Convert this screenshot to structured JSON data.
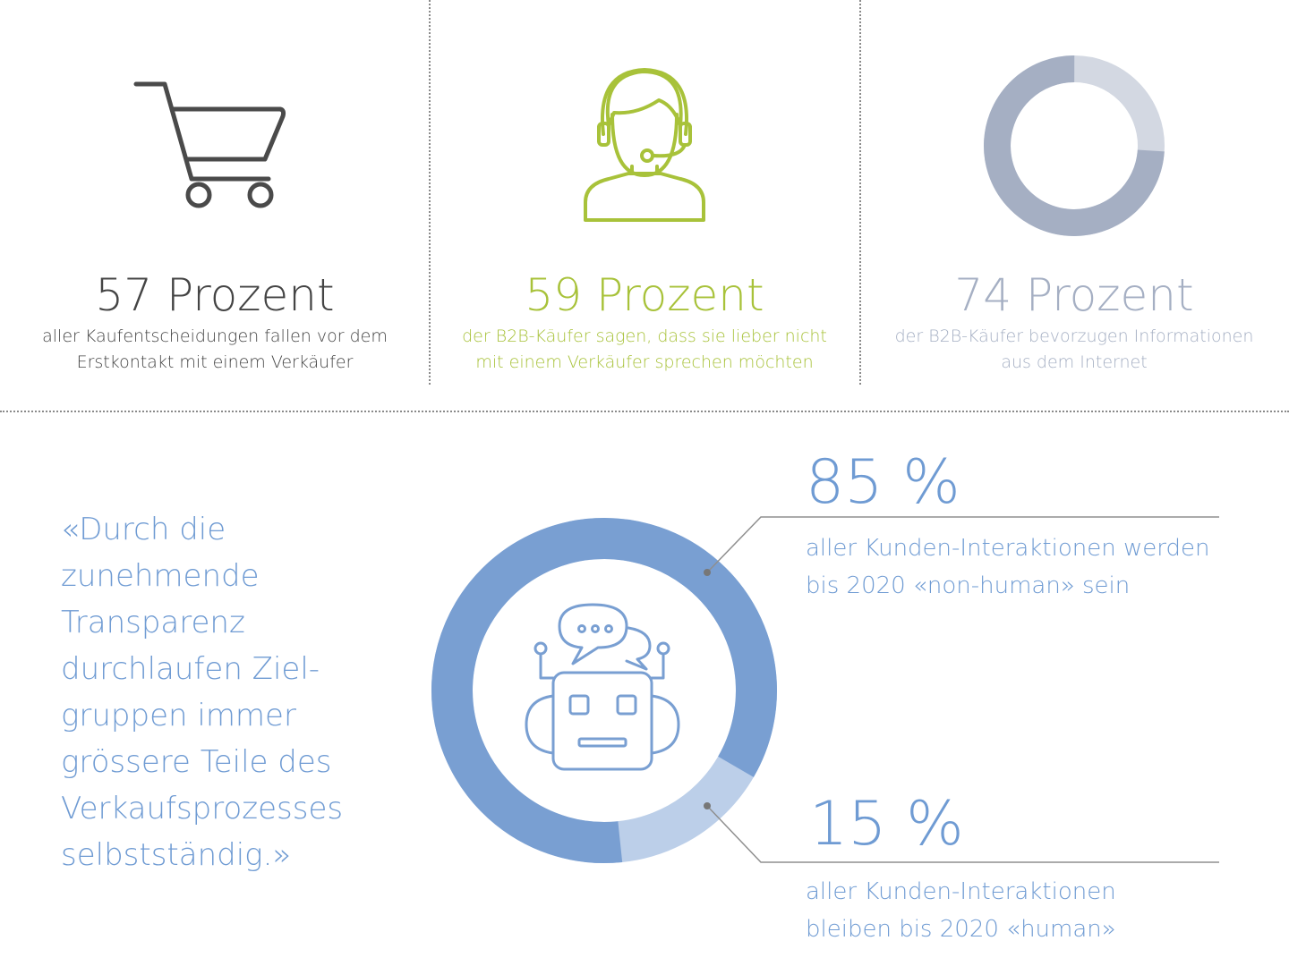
{
  "stats": [
    {
      "headline": "57 Prozent",
      "line1": "aller Kaufentscheidungen fallen vor dem",
      "line2": "Erstkontakt mit einem Verkäufer",
      "color": "#444444",
      "desc_color": "#444444",
      "icon": "shopping-cart-icon"
    },
    {
      "headline": "59 Prozent",
      "line1": "der B2B-Käufer sagen, dass sie lieber nicht",
      "line2": "mit einem Verkäufer sprechen möchten",
      "color": "#a8c23a",
      "desc_color": "#a8c23a",
      "icon": "headset-agent-icon"
    },
    {
      "headline": "74 Prozent",
      "line1": "der B2B-Käufer bevorzugen Informationen",
      "line2": "aus dem Internet",
      "color": "#a5afc3",
      "desc_color": "#a5afc3",
      "icon": "ring-chart-icon",
      "ring_value": 0.74
    }
  ],
  "quote": {
    "lines": [
      "«Durch die",
      "zunehmende",
      "Transparenz",
      "durchlaufen Ziel-",
      "gruppen immer",
      "grössere Teile des",
      "Verkaufsprozesses",
      "selbstständig.»"
    ],
    "color": "#6f9bd3"
  },
  "interactions": {
    "non_human": {
      "value": "85 %",
      "line1": "aller Kunden-Interaktionen werden",
      "line2": "bis 2020 «non-human» sein",
      "fraction": 0.85
    },
    "human": {
      "value": "15 %",
      "line1": "aller Kunden-Interaktionen",
      "line2": "bleiben bis 2020 «human»",
      "fraction": 0.15
    },
    "icon": "robot-chat-icon",
    "colors": {
      "primary": "#799fd2",
      "light": "#bccfe9",
      "text": "#6f9bd3"
    }
  }
}
